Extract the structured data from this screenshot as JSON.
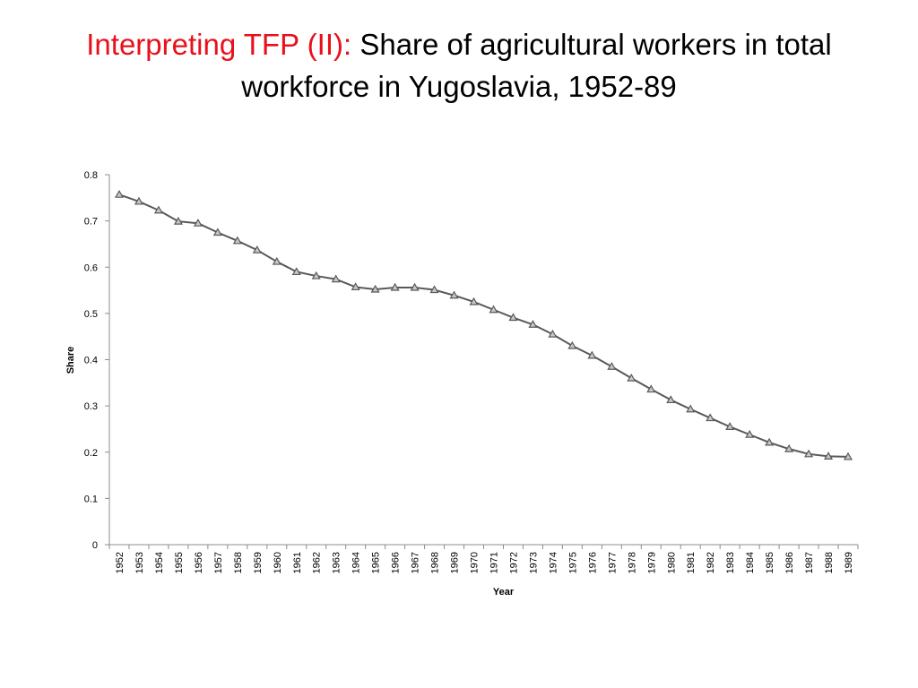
{
  "slide": {
    "title_accent": "Interpreting TFP (II):",
    "title_rest": " Share of agricultural workers in total workforce in Yugoslavia, 1952-89"
  },
  "chart_data": {
    "type": "line",
    "title": "",
    "xlabel": "Year",
    "ylabel": "Share",
    "categories": [
      "1952",
      "1953",
      "1954",
      "1955",
      "1956",
      "1957",
      "1958",
      "1959",
      "1960",
      "1961",
      "1962",
      "1963",
      "1964",
      "1965",
      "1966",
      "1967",
      "1968",
      "1969",
      "1970",
      "1971",
      "1972",
      "1973",
      "1974",
      "1975",
      "1976",
      "1977",
      "1978",
      "1979",
      "1980",
      "1981",
      "1982",
      "1983",
      "1984",
      "1985",
      "1986",
      "1987",
      "1988",
      "1989"
    ],
    "yticks": [
      "0",
      "0.1",
      "0.2",
      "0.3",
      "0.4",
      "0.5",
      "0.6",
      "0.7",
      "0.8"
    ],
    "ylim": [
      0,
      0.8
    ],
    "grid": false,
    "legend": "none",
    "series": [
      {
        "marker": "triangle",
        "color": "#595959",
        "values": [
          0.757,
          0.742,
          0.723,
          0.699,
          0.695,
          0.675,
          0.657,
          0.637,
          0.612,
          0.59,
          0.581,
          0.574,
          0.557,
          0.552,
          0.556,
          0.556,
          0.551,
          0.539,
          0.525,
          0.508,
          0.491,
          0.476,
          0.455,
          0.43,
          0.409,
          0.385,
          0.36,
          0.336,
          0.313,
          0.293,
          0.274,
          0.255,
          0.238,
          0.221,
          0.207,
          0.196,
          0.191,
          0.19
        ]
      }
    ]
  }
}
